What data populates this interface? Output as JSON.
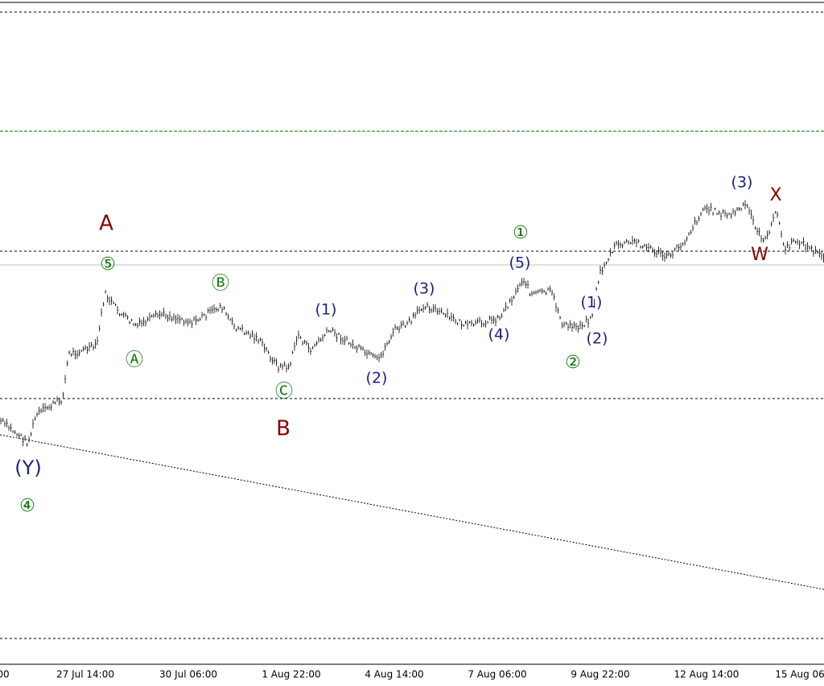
{
  "x_axis": {
    "labels": [
      "00",
      "27 Jul 14:00",
      "30 Jul 06:00",
      "1 Aug 22:00",
      "4 Aug 14:00",
      "7 Aug 06:00",
      "9 Aug 22:00",
      "12 Aug 14:00",
      "15 Aug 06"
    ]
  },
  "wave_labels": [
    "A",
    "⑤",
    "Ⓐ",
    "Ⓑ",
    "Ⓒ",
    "B",
    "(1)",
    "(2)",
    "(3)",
    "(4)",
    "(5)",
    "①",
    "②",
    "(1)",
    "(2)",
    "(3)",
    "X",
    "W",
    "(Y)",
    "④"
  ]
}
